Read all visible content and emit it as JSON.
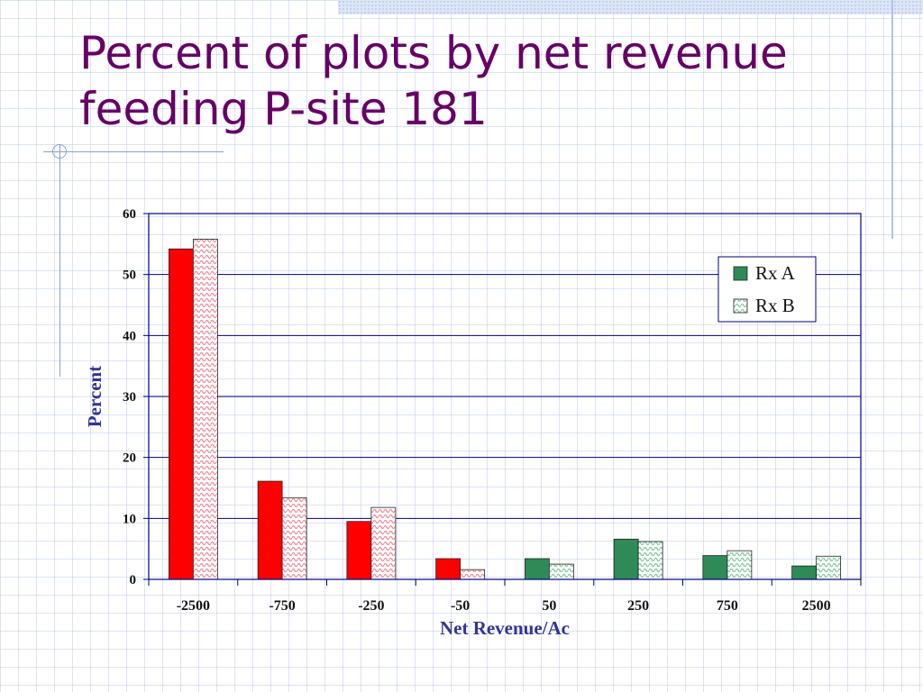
{
  "slide": {
    "title": "Percent of plots by net revenue\nfeeding P-site 181"
  },
  "colors": {
    "title": "#660066",
    "negative_solid": "#ff0000",
    "negative_hatched": "#f7b3bd",
    "positive_solid": "#2e8b57",
    "positive_hatched": "#c9ead5",
    "axis_text": "#333399",
    "axis_line": "#000080"
  },
  "chart_data": {
    "type": "bar",
    "categories": [
      "-2500",
      "-750",
      "-250",
      "-50",
      "50",
      "250",
      "750",
      "2500"
    ],
    "series": [
      {
        "name": "Rx A",
        "values": [
          54.2,
          16.1,
          9.5,
          3.4,
          3.4,
          6.6,
          3.9,
          2.2
        ]
      },
      {
        "name": "Rx B",
        "values": [
          55.8,
          13.4,
          11.8,
          1.6,
          2.5,
          6.2,
          4.7,
          3.8
        ]
      }
    ],
    "xlabel": "Net Revenue/Ac",
    "ylabel": "Percent",
    "ylim": [
      0,
      60
    ],
    "yticks": [
      0,
      10,
      20,
      30,
      40,
      50,
      60
    ],
    "grid": true,
    "legend_position": "top-right"
  }
}
